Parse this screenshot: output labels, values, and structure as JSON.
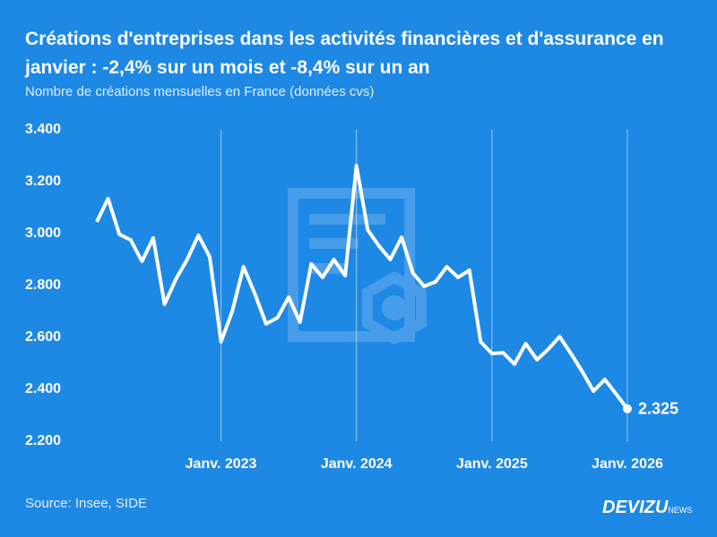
{
  "chart_data": {
    "type": "line",
    "title": "Créations d'entreprises dans les activités financières et d'assurance en janvier : -2,4% sur un mois et -8,4% sur un an",
    "subtitle": "Nombre de créations mensuelles en France (données cvs)",
    "source": "Source: Insee, SIDE",
    "brand": "DEVIZU",
    "brand_suffix": "NEWS",
    "categories": [
      null,
      null,
      null,
      null,
      null,
      null,
      null,
      null,
      null,
      null,
      null,
      "Janv. 2023",
      null,
      null,
      null,
      null,
      null,
      null,
      null,
      null,
      null,
      null,
      null,
      "Janv. 2024",
      null,
      null,
      null,
      null,
      null,
      null,
      null,
      null,
      null,
      null,
      null,
      "Janv. 2025",
      null,
      null,
      null,
      null,
      null,
      null,
      null,
      null,
      null,
      null,
      null,
      "Janv. 2026"
    ],
    "series": [
      {
        "name": "Créations",
        "color": "#ffffff",
        "values": [
          3045,
          3135,
          2997,
          2976,
          2893,
          2983,
          2728,
          2824,
          2900,
          2993,
          2910,
          2583,
          2700,
          2872,
          2769,
          2652,
          2676,
          2755,
          2659,
          2883,
          2831,
          2900,
          2838,
          3262,
          3014,
          2952,
          2900,
          2986,
          2848,
          2797,
          2814,
          2872,
          2831,
          2859,
          2583,
          2538,
          2541,
          2497,
          2576,
          2514,
          2555,
          2603,
          2538,
          2469,
          2393,
          2438,
          2382,
          2325
        ],
        "value_labels": [
          null,
          null,
          null,
          null,
          null,
          null,
          null,
          null,
          null,
          null,
          null,
          null,
          null,
          null,
          null,
          null,
          null,
          null,
          null,
          null,
          null,
          null,
          null,
          null,
          null,
          null,
          null,
          null,
          null,
          null,
          null,
          null,
          null,
          null,
          null,
          null,
          null,
          null,
          null,
          null,
          null,
          null,
          null,
          null,
          null,
          null,
          null,
          "2.325"
        ]
      }
    ],
    "ylim": [
      2200,
      3400
    ],
    "yticks": [
      {
        "value": 2200,
        "label": "2.200"
      },
      {
        "value": 2400,
        "label": "2.400"
      },
      {
        "value": 2600,
        "label": "2.600"
      },
      {
        "value": 2800,
        "label": "2.800"
      },
      {
        "value": 3000,
        "label": "3.000"
      },
      {
        "value": 3200,
        "label": "3.200"
      },
      {
        "value": 3400,
        "label": "3.400"
      }
    ],
    "grid": true
  }
}
